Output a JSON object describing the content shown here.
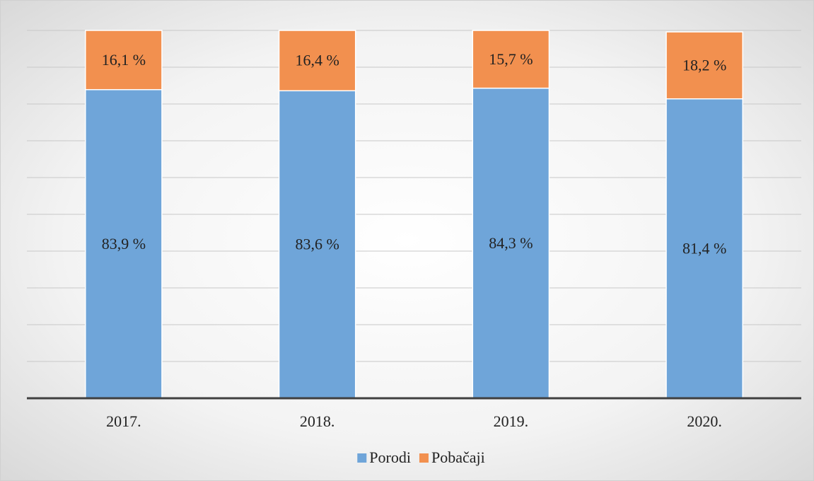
{
  "chart_data": {
    "type": "stacked_bar",
    "categories": [
      "2017.",
      "2018.",
      "2019.",
      "2020."
    ],
    "series": [
      {
        "name": "Porodi",
        "color": "#6fa5d9",
        "values": [
          83.9,
          83.6,
          84.3,
          81.4
        ],
        "value_labels": [
          "83,9 %",
          "83,6 %",
          "84,3 %",
          "81,4 %"
        ]
      },
      {
        "name": "Pobačaji",
        "color": "#f2904f",
        "values": [
          16.1,
          16.4,
          15.7,
          18.2
        ],
        "value_labels": [
          "16,1 %",
          "16,4 %",
          "15,7 %",
          "18,2 %"
        ]
      }
    ],
    "ylim": [
      0,
      100
    ],
    "yticks": [
      0,
      10,
      20,
      30,
      40,
      50,
      60,
      70,
      80,
      90,
      100
    ],
    "grid": true,
    "legend": "bottom"
  }
}
